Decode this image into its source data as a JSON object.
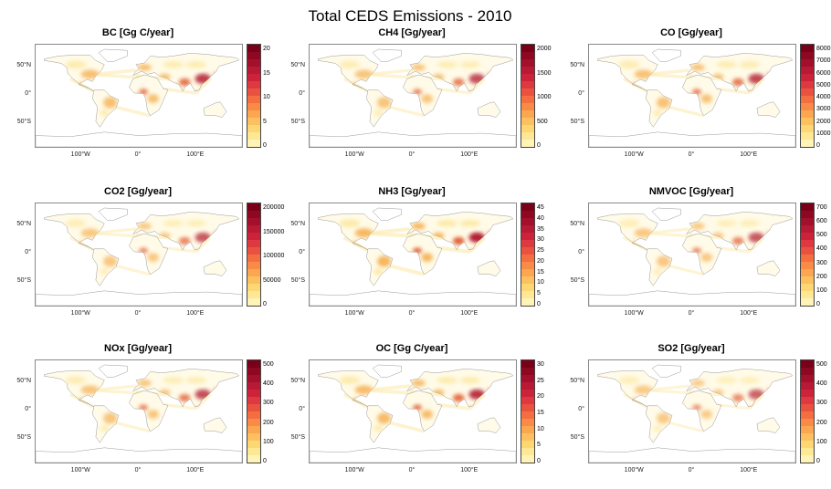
{
  "title": "Total CEDS Emissions - 2010",
  "colors": {
    "colorbar": [
      "#7a0019",
      "#8e0822",
      "#a3102b",
      "#b81934",
      "#cc233b",
      "#de3940",
      "#ea5240",
      "#f46e42",
      "#f98b47",
      "#fca651",
      "#fdc05f",
      "#fed775",
      "#ffe893",
      "#fff3b8"
    ],
    "land": "#fffbe8",
    "low": "#fde9a6",
    "mid": "#f6b45b",
    "high": "#e05a2e",
    "peak": "#b3172c",
    "outline": "#9a9a9a"
  },
  "lat_labels": [
    "50°N",
    "0°",
    "50°S"
  ],
  "lon_labels": [
    "100°W",
    "0°",
    "100°E"
  ],
  "panels": [
    {
      "title": "BC [Gg C/year]",
      "ticks": [
        "20",
        "15",
        "10",
        "5",
        "0"
      ],
      "intensity": 0.55
    },
    {
      "title": "CH4 [Gg/year]",
      "ticks": [
        "2000",
        "1500",
        "1000",
        "500",
        "0"
      ],
      "intensity": 0.45
    },
    {
      "title": "CO [Gg/year]",
      "ticks": [
        "8000",
        "7000",
        "6000",
        "5000",
        "4000",
        "3000",
        "2000",
        "1000",
        "0"
      ],
      "intensity": 0.5
    },
    {
      "title": "CO2 [Gg/year]",
      "ticks": [
        "200000",
        "150000",
        "100000",
        "50000",
        "0"
      ],
      "intensity": 0.4
    },
    {
      "title": "NH3 [Gg/year]",
      "ticks": [
        "45",
        "40",
        "35",
        "30",
        "25",
        "20",
        "15",
        "10",
        "5",
        "0"
      ],
      "intensity": 0.7
    },
    {
      "title": "NMVOC [Gg/year]",
      "ticks": [
        "700",
        "600",
        "500",
        "400",
        "300",
        "200",
        "100",
        "0"
      ],
      "intensity": 0.4
    },
    {
      "title": "NOx [Gg/year]",
      "ticks": [
        "500",
        "400",
        "300",
        "200",
        "100",
        "0"
      ],
      "intensity": 0.45
    },
    {
      "title": "OC [Gg C/year]",
      "ticks": [
        "30",
        "25",
        "20",
        "15",
        "10",
        "5",
        "0"
      ],
      "intensity": 0.6
    },
    {
      "title": "SO2 [Gg/year]",
      "ticks": [
        "500",
        "400",
        "300",
        "200",
        "100",
        "0"
      ],
      "intensity": 0.35
    }
  ]
}
